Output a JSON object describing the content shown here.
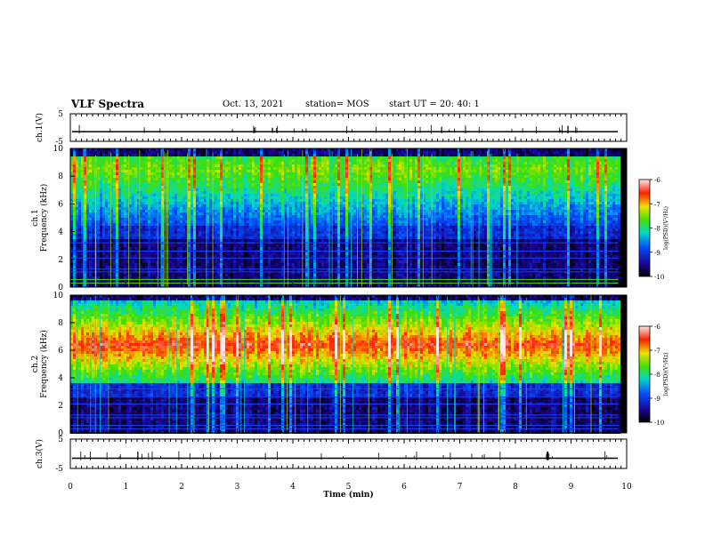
{
  "header": {
    "title": "VLF Spectra",
    "date": "Oct. 13, 2021",
    "station": "station= MOS",
    "start": "start  UT  =   20: 40: 1"
  },
  "chart_data": [
    {
      "type": "line",
      "panel": "ch1-waveform",
      "ylabel": "ch.1(V)",
      "ylim": [
        -5,
        5
      ],
      "yticks": [
        "5",
        "-5"
      ],
      "xlim": [
        0,
        10
      ],
      "series": [
        {
          "values": [
            -1.5,
            -1.5
          ]
        }
      ]
    },
    {
      "type": "heatmap",
      "panel": "ch1-spectrogram",
      "ylabel": "ch.1\nFrequency (kHz)",
      "ylim": [
        0,
        10
      ],
      "yticks": [
        "0",
        "2",
        "4",
        "6",
        "8",
        "10"
      ],
      "xlim": [
        0,
        9.85
      ],
      "band_khz": [
        4.5,
        9.6
      ],
      "band_peak_khz": 8.6,
      "colorbar": {
        "label": "log(PSD)(V²/Hz)",
        "range": [
          -10,
          -6
        ],
        "ticks": [
          "-6",
          "-7",
          "-8",
          "-9",
          "-10"
        ]
      }
    },
    {
      "type": "heatmap",
      "panel": "ch2-spectrogram",
      "ylabel": "ch.2\nFrequency (kHz)",
      "ylim": [
        0,
        10
      ],
      "yticks": [
        "0",
        "2",
        "4",
        "6",
        "8",
        "10"
      ],
      "xlim": [
        0,
        9.85
      ],
      "band_khz": [
        3.8,
        9.8
      ],
      "band_peak_khz": 6.5,
      "colorbar": {
        "label": "log(PSD)(V²/Hz)",
        "range": [
          -10,
          -6
        ],
        "ticks": [
          "-6",
          "-7",
          "-8",
          "-9",
          "-10"
        ]
      }
    },
    {
      "type": "line",
      "panel": "ch3-waveform",
      "ylabel": "ch.3(V)",
      "ylim": [
        -5,
        5
      ],
      "yticks": [
        "5",
        "-5"
      ],
      "xlim": [
        0,
        10
      ],
      "series": [
        {
          "values": [
            -1.5,
            -1.5
          ]
        }
      ]
    }
  ],
  "xaxis": {
    "label": "Time  (min)",
    "ticks": [
      "0",
      "1",
      "2",
      "3",
      "4",
      "5",
      "6",
      "7",
      "8",
      "9",
      "10"
    ],
    "range": [
      0,
      10
    ]
  },
  "colors": {
    "frame": "#000000",
    "background": "#000000",
    "low": "#00008b",
    "high": "#ff0000"
  }
}
